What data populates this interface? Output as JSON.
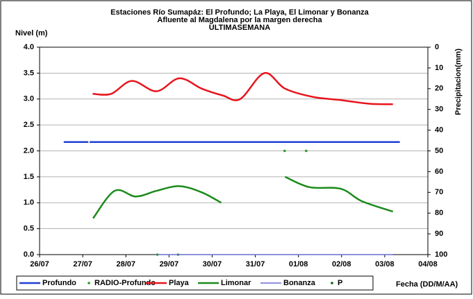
{
  "chart_data": {
    "type": "line",
    "title": [
      "Estaciones Río Sumapáz: El Profundo; La Playa, El Limonar y Bonanza",
      "Afluente al Magdalena por la margen derecha",
      "ULTIMASEMANA"
    ],
    "ylabel": "Nivel (m)",
    "y2label": "Precipitacion(mm)",
    "xlabel": "Fecha (DD/M/AA)",
    "xlim": [
      0,
      9
    ],
    "xticks": [
      {
        "value": 0,
        "label": "26/07"
      },
      {
        "value": 1,
        "label": "27/07"
      },
      {
        "value": 2,
        "label": "28/07"
      },
      {
        "value": 3,
        "label": "29/07"
      },
      {
        "value": 4,
        "label": "30/07"
      },
      {
        "value": 5,
        "label": "31/07"
      },
      {
        "value": 6,
        "label": "01/08"
      },
      {
        "value": 7,
        "label": "02/08"
      },
      {
        "value": 8,
        "label": "03/08"
      },
      {
        "value": 9,
        "label": "04/08"
      }
    ],
    "ylim": [
      0,
      4
    ],
    "yticks": [
      {
        "value": 0,
        "label": "0.0"
      },
      {
        "value": 0.5,
        "label": "0.5"
      },
      {
        "value": 1,
        "label": "1.0"
      },
      {
        "value": 1.5,
        "label": "1.5"
      },
      {
        "value": 2,
        "label": "2.0"
      },
      {
        "value": 2.5,
        "label": "2.5"
      },
      {
        "value": 3,
        "label": "3.0"
      },
      {
        "value": 3.5,
        "label": "3.5"
      },
      {
        "value": 4,
        "label": "4.0"
      }
    ],
    "y2lim": [
      100,
      0
    ],
    "y2ticks": [
      0,
      10,
      20,
      30,
      40,
      50,
      60,
      70,
      80,
      90,
      100
    ],
    "grid": true,
    "series": [
      {
        "name": "Profundo",
        "color": "#1f3fd6",
        "kind": "line",
        "smooth": false,
        "x": [
          0.56,
          1.13,
          1.14,
          1.16,
          8.35
        ],
        "values": [
          2.17,
          2.17,
          null,
          2.17,
          2.17
        ]
      },
      {
        "name": "RADIO-Profundo",
        "color": "#2a9a2a",
        "kind": "scatter",
        "x": [
          2.73,
          3.21,
          5.68,
          6.18
        ],
        "values": [
          0,
          0,
          2.0,
          2.0
        ]
      },
      {
        "name": "Playa",
        "color": "#e8141c",
        "kind": "line",
        "smooth": true,
        "x": [
          1.23,
          1.66,
          2.14,
          2.71,
          3.24,
          3.76,
          4.24,
          4.65,
          5.21,
          5.69,
          6.34,
          6.98,
          7.63,
          8.19
        ],
        "values": [
          3.1,
          3.1,
          3.35,
          3.15,
          3.4,
          3.2,
          3.07,
          3.0,
          3.5,
          3.2,
          3.04,
          2.98,
          2.91,
          2.9
        ]
      },
      {
        "name": "Limonar",
        "color": "#1a8a1a",
        "kind": "line",
        "smooth": true,
        "x": [
          1.24,
          1.74,
          2.23,
          2.71,
          3.24,
          3.76,
          4.21,
          4.5,
          5.69,
          6.26,
          6.98,
          7.47,
          8.19
        ],
        "values": [
          0.7,
          1.23,
          1.12,
          1.23,
          1.32,
          1.2,
          1.0,
          null,
          1.5,
          1.3,
          1.27,
          1.03,
          0.83
        ]
      },
      {
        "name": "Bonanza",
        "color": "#6a6ad0",
        "kind": "line",
        "smooth": false,
        "x": [
          2.73,
          8.19
        ],
        "values": [
          0,
          0
        ]
      },
      {
        "name": "P",
        "color": "#0b5e0b",
        "kind": "scatter",
        "x": [],
        "values": []
      }
    ]
  }
}
